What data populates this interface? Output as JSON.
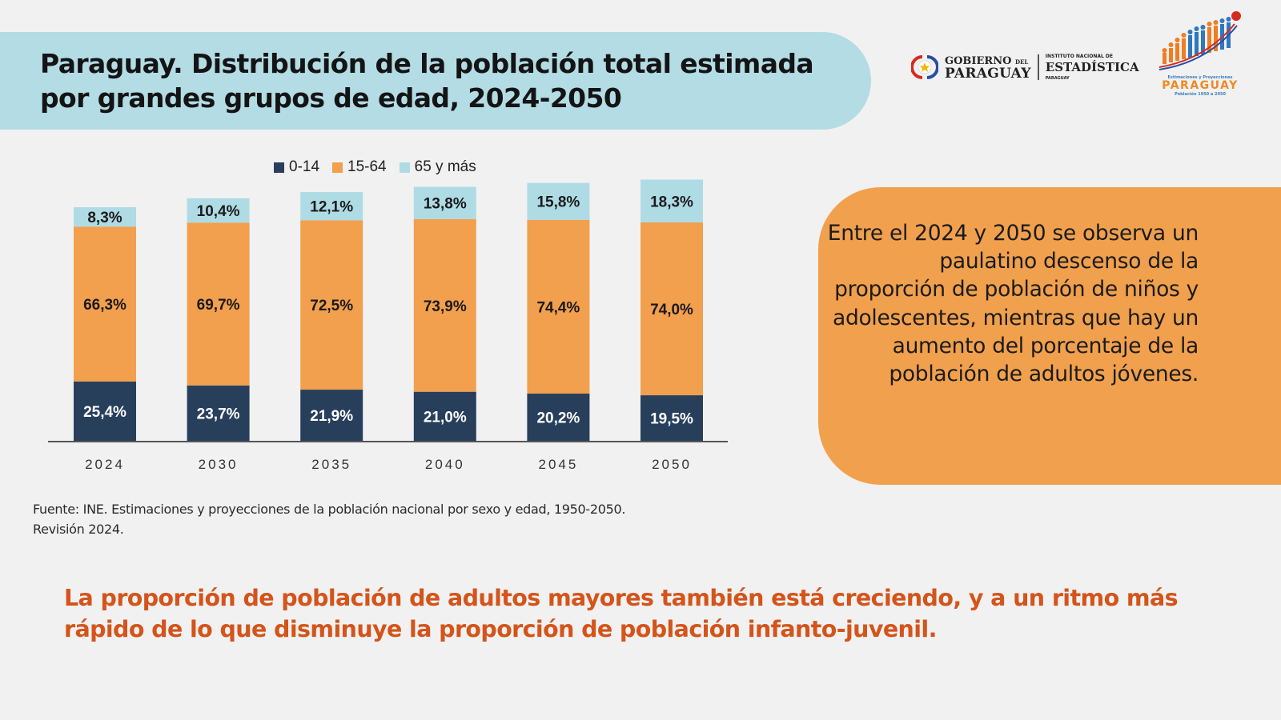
{
  "title": {
    "line1": "Paraguay. Distribución de la población total estimada",
    "line2": "por grandes grupos de edad, 2024-2050"
  },
  "logos": {
    "government": {
      "line1": "GOBIERNO",
      "line1_small": "DEL",
      "line2": "PARAGUAY"
    },
    "ine": {
      "top": "INSTITUTO NACIONAL DE",
      "main": "ESTADÍSTICA",
      "bottom": "PARAGUAY"
    },
    "projections": {
      "subtitle": "Estimaciones y Proyecciones",
      "name": "PARAGUAY",
      "range": "Población 1950 a 2050"
    }
  },
  "colors": {
    "age_0_14": "#283f5c",
    "age_15_64": "#f29f4e",
    "age_65_plus": "#afdbe5",
    "banner": "#b3dce5",
    "callout": "#f1a04d",
    "conclusion_text": "#d4541a"
  },
  "chart_data": {
    "type": "bar",
    "stacked": true,
    "title": "Paraguay. Distribución de la población total estimada por grandes grupos de edad, 2024-2050",
    "xlabel": "",
    "ylabel": "",
    "ylim": [
      0,
      100
    ],
    "grid": false,
    "legend_position": "top",
    "categories": [
      "2024",
      "2030",
      "2035",
      "2040",
      "2045",
      "2050"
    ],
    "series": [
      {
        "name": "0-14",
        "values": [
          25.4,
          23.7,
          21.9,
          21.0,
          20.2,
          19.5
        ],
        "labels": [
          "25,4%",
          "23,7%",
          "21,9%",
          "21,0%",
          "20,2%",
          "19,5%"
        ]
      },
      {
        "name": "15-64",
        "values": [
          66.3,
          69.7,
          72.5,
          73.9,
          74.4,
          74.0
        ],
        "labels": [
          "66,3%",
          "69,7%",
          "72,5%",
          "73,9%",
          "74,4%",
          "74,0%"
        ]
      },
      {
        "name": "65 y más",
        "values": [
          8.3,
          10.4,
          12.1,
          13.8,
          15.8,
          18.3
        ],
        "labels": [
          "8,3%",
          "10,4%",
          "12,1%",
          "13,8%",
          "15,8%",
          "18,3%"
        ]
      }
    ]
  },
  "callout": {
    "text": "Entre el 2024 y 2050 se observa un paulatino descenso de la proporción de población de niños y adolescentes, mientras que hay un aumento del porcentaje de la población de adultos jóvenes."
  },
  "source": {
    "line1": "Fuente: INE. Estimaciones y proyecciones de la población nacional por sexo y edad, 1950-2050.",
    "line2": "Revisión 2024."
  },
  "conclusion": {
    "text": "La proporción de población de adultos mayores también está creciendo, y a un ritmo más rápido de lo que disminuye la proporción de población infanto-juvenil."
  }
}
